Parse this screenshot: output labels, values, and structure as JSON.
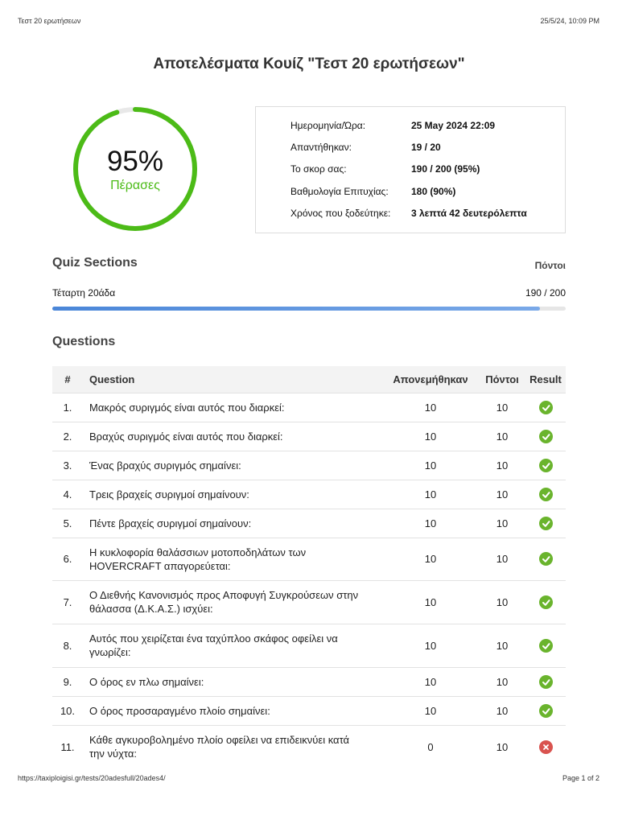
{
  "print_header": {
    "title": "Τεστ 20 ερωτήσεων",
    "datetime": "25/5/24, 10:09 PM"
  },
  "page_title": "Αποτελέσματα Κουίζ \"Τεστ 20 ερωτήσεων\"",
  "score": {
    "percent_label": "95%",
    "percent_value": 0.95,
    "status": "Πέρασες",
    "ring_color": "#4cbb17"
  },
  "info": [
    {
      "label": "Ημερομηνία/Ώρα:",
      "value": "25 May 2024 22:09"
    },
    {
      "label": "Απαντήθηκαν:",
      "value": "19 / 20"
    },
    {
      "label": "Το σκορ σας:",
      "value": "190 / 200 (95%)"
    },
    {
      "label": "Βαθμολογία Επιτυχίας:",
      "value": "180 (90%)"
    },
    {
      "label": "Χρόνος που ξοδεύτηκε:",
      "value": "3 λεπτά 42 δευτερόλεπτα"
    }
  ],
  "sections": {
    "heading": "Quiz Sections",
    "points_header": "Πόντοι",
    "items": [
      {
        "name": "Τέταρτη 20άδα",
        "score": "190 / 200",
        "progress": 0.95
      }
    ]
  },
  "questions": {
    "heading": "Questions",
    "columns": {
      "num": "#",
      "question": "Question",
      "awarded": "Απονεμήθηκαν",
      "points": "Πόντοι",
      "result": "Result"
    },
    "rows": [
      {
        "num": "1.",
        "question": "Μακρός συριγμός είναι αυτός που διαρκεί:",
        "awarded": "10",
        "points": "10",
        "result": "correct"
      },
      {
        "num": "2.",
        "question": "Βραχύς συριγμός είναι αυτός που διαρκεί:",
        "awarded": "10",
        "points": "10",
        "result": "correct"
      },
      {
        "num": "3.",
        "question": "Ένας βραχύς συριγμός σημαίνει:",
        "awarded": "10",
        "points": "10",
        "result": "correct"
      },
      {
        "num": "4.",
        "question": "Τρεις βραχείς συριγμοί σημαίνουν:",
        "awarded": "10",
        "points": "10",
        "result": "correct"
      },
      {
        "num": "5.",
        "question": "Πέντε βραχείς συριγμοί σημαίνουν:",
        "awarded": "10",
        "points": "10",
        "result": "correct"
      },
      {
        "num": "6.",
        "question": "Η κυκλοφορία θαλάσσιων μοτοποδηλάτων των HOVERCRAFT απαγορεύεται:",
        "awarded": "10",
        "points": "10",
        "result": "correct"
      },
      {
        "num": "7.",
        "question": "Ο Διεθνής Κανονισμός προς Αποφυγή Συγκρούσεων στην θάλασσα (Δ.Κ.Α.Σ.) ισχύει:",
        "awarded": "10",
        "points": "10",
        "result": "correct"
      },
      {
        "num": "8.",
        "question": "Αυτός που χειρίζεται ένα ταχύπλοο σκάφος οφείλει να γνωρίζει:",
        "awarded": "10",
        "points": "10",
        "result": "correct"
      },
      {
        "num": "9.",
        "question": "Ο όρος εν πλω σημαίνει:",
        "awarded": "10",
        "points": "10",
        "result": "correct"
      },
      {
        "num": "10.",
        "question": "Ο όρος προσαραγμένο πλοίο σημαίνει:",
        "awarded": "10",
        "points": "10",
        "result": "correct"
      },
      {
        "num": "11.",
        "question": "Κάθε αγκυροβολημένο πλοίο οφείλει να επιδεικνύει κατά την νύχτα:",
        "awarded": "0",
        "points": "10",
        "result": "incorrect"
      }
    ]
  },
  "colors": {
    "correct": "#6ab42d",
    "incorrect": "#d9534f"
  },
  "print_footer": {
    "url": "https://taxiploigisi.gr/tests/20adesfull/20ades4/",
    "page": "Page 1 of 2"
  }
}
